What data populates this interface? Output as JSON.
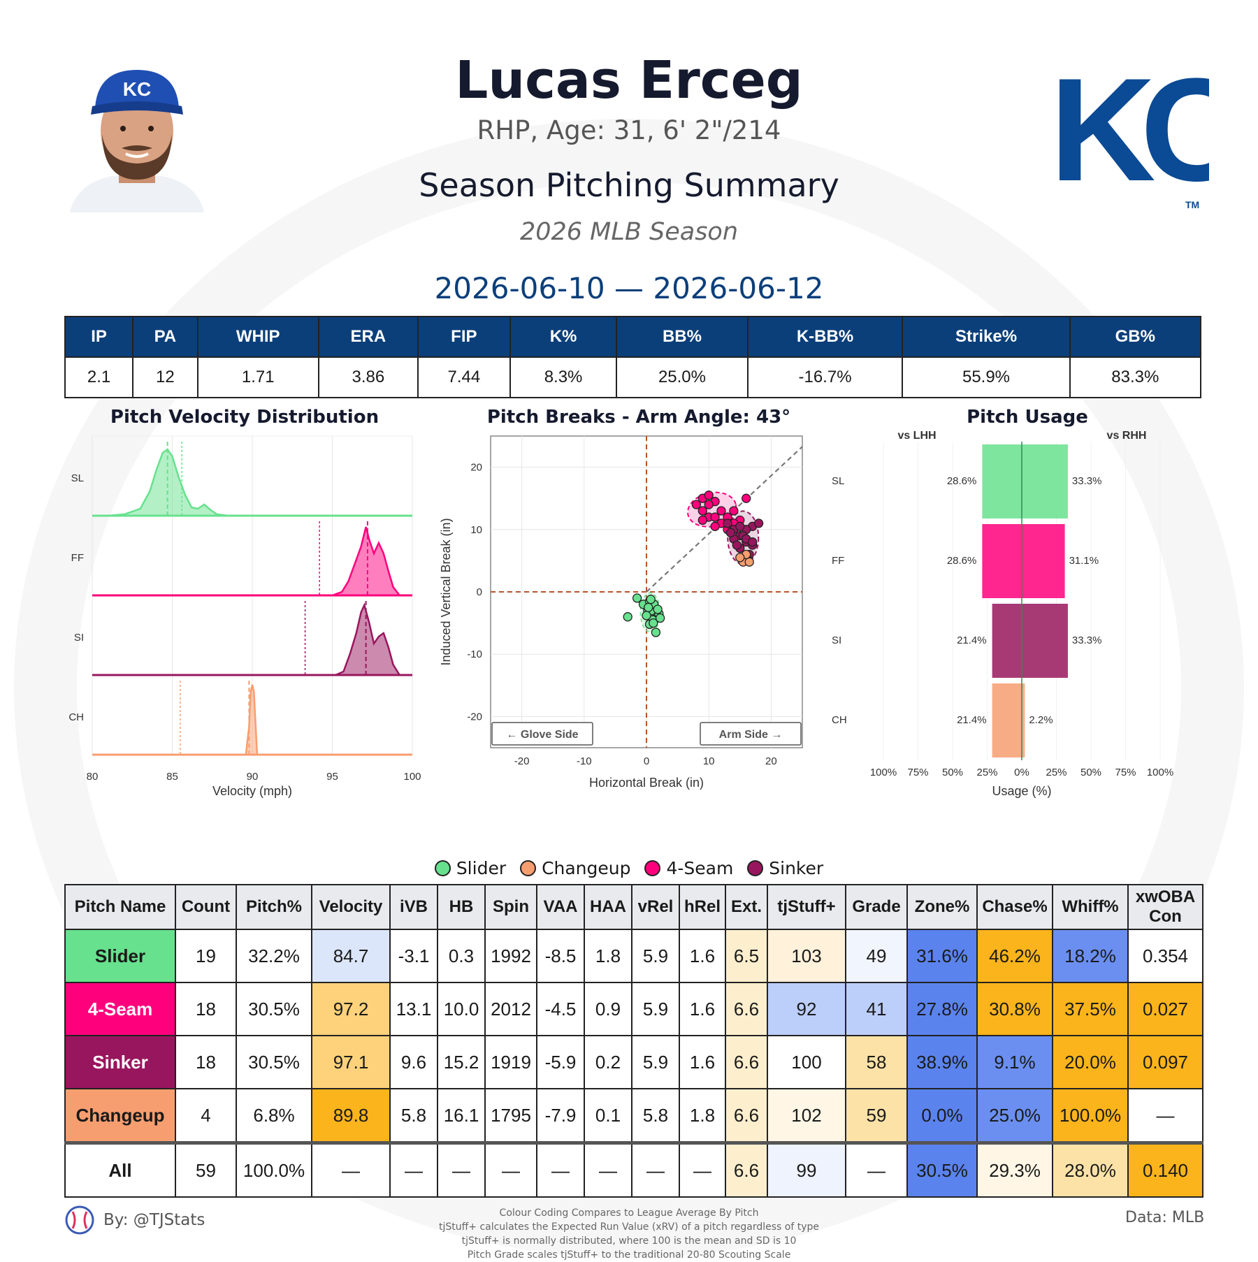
{
  "header": {
    "name": "Lucas Erceg",
    "bio": "RHP, Age: 31, 6' 2\"/214",
    "heading": "Season Pitching Summary",
    "season": "2026 MLB Season",
    "dates": "2026-06-10 — 2026-06-12",
    "logo_text": "KC",
    "logo_tm": "TM"
  },
  "stats": {
    "headers": [
      "IP",
      "PA",
      "WHIP",
      "ERA",
      "FIP",
      "K%",
      "BB%",
      "K-BB%",
      "Strike%",
      "GB%"
    ],
    "values": [
      "2.1",
      "12",
      "1.71",
      "3.86",
      "7.44",
      "8.3%",
      "25.0%",
      "-16.7%",
      "55.9%",
      "83.3%"
    ]
  },
  "colors": {
    "SL": "#67e18d",
    "FF": "#ff007d",
    "SI": "#98165d",
    "CH": "#f79e70",
    "navy": "#0b3f7a"
  },
  "chart_data": [
    {
      "type": "area",
      "title": "Pitch Velocity Distribution",
      "xlabel": "Velocity (mph)",
      "xlim": [
        80,
        100
      ],
      "xticks": [
        "80",
        "85",
        "90",
        "95",
        "100"
      ],
      "series": [
        {
          "name": "SL",
          "density_x": [
            81,
            82,
            83,
            83.6,
            84,
            84.4,
            84.7,
            85,
            85.4,
            85.8,
            86.2,
            86.6,
            87,
            87.4,
            87.8,
            88.5,
            100
          ],
          "density_y": [
            0,
            0.02,
            0.1,
            0.35,
            0.65,
            0.9,
            0.95,
            0.85,
            0.55,
            0.3,
            0.12,
            0.1,
            0.16,
            0.08,
            0.02,
            0,
            0
          ],
          "mean": 84.7,
          "league_mean": 85.6
        },
        {
          "name": "FF",
          "density_x": [
            80,
            95,
            95.6,
            96,
            96.4,
            96.8,
            97.1,
            97.3,
            97.6,
            97.9,
            98.2,
            98.5,
            98.8,
            99.2,
            100
          ],
          "density_y": [
            0,
            0,
            0.05,
            0.2,
            0.45,
            0.7,
            0.98,
            0.8,
            0.6,
            0.75,
            0.6,
            0.35,
            0.12,
            0,
            0
          ],
          "mean": 97.2,
          "league_mean": 94.2
        },
        {
          "name": "SI",
          "density_x": [
            80,
            95.2,
            95.7,
            96.1,
            96.5,
            96.8,
            97,
            97.3,
            97.6,
            97.9,
            98.2,
            98.5,
            98.8,
            99.2,
            100
          ],
          "density_y": [
            0,
            0,
            0.05,
            0.3,
            0.6,
            0.9,
            1.0,
            0.75,
            0.45,
            0.55,
            0.6,
            0.4,
            0.15,
            0,
            0
          ],
          "mean": 97.1,
          "league_mean": 93.3
        },
        {
          "name": "CH",
          "density_x": [
            80,
            89.6,
            89.8,
            89.9,
            90,
            90.1,
            90.3,
            100
          ],
          "density_y": [
            0,
            0,
            0.4,
            0.9,
            1.0,
            0.9,
            0,
            0
          ],
          "mean": 89.8,
          "league_mean": 85.5
        }
      ]
    },
    {
      "type": "scatter",
      "title": "Pitch Breaks - Arm Angle: 43°",
      "xlabel": "Horizontal Break (in)",
      "ylabel": "Induced Vertical Break (in)",
      "xlim": [
        -25,
        25
      ],
      "ylim": [
        -25,
        25
      ],
      "xticks": [
        "-20",
        "-10",
        "0",
        "10",
        "20"
      ],
      "yticks": [
        "20",
        "10",
        "0",
        "-10",
        "-20"
      ],
      "annotations": [
        "← Glove Side",
        "Arm Side →"
      ],
      "series": [
        {
          "name": "SL",
          "points": [
            [
              -3,
              -4
            ],
            [
              -1.5,
              -1
            ],
            [
              -0.5,
              -2
            ],
            [
              0.2,
              -3
            ],
            [
              0.5,
              -1.5
            ],
            [
              1,
              -2.5
            ],
            [
              1.5,
              -3.2
            ],
            [
              1,
              -4.5
            ],
            [
              0.5,
              -5.2
            ],
            [
              1.5,
              -6.5
            ],
            [
              2,
              -3.5
            ],
            [
              0.8,
              -3
            ],
            [
              1.2,
              -2
            ],
            [
              0,
              -3.8
            ],
            [
              1.8,
              -2.8
            ],
            [
              0.3,
              -2.5
            ],
            [
              1.1,
              -5
            ],
            [
              2.2,
              -4.2
            ],
            [
              0.7,
              -1.2
            ]
          ]
        },
        {
          "name": "FF",
          "points": [
            [
              8,
              14
            ],
            [
              9,
              15
            ],
            [
              10,
              15.5
            ],
            [
              11,
              14.5
            ],
            [
              12,
              13
            ],
            [
              10,
              12
            ],
            [
              9,
              11.5
            ],
            [
              11,
              12
            ],
            [
              12,
              11
            ],
            [
              13,
              12
            ],
            [
              14,
              13
            ],
            [
              15,
              11.5
            ],
            [
              16,
              15
            ],
            [
              10,
              14
            ],
            [
              9,
              13
            ],
            [
              13,
              10
            ],
            [
              11,
              10.5
            ],
            [
              14,
              11
            ]
          ]
        },
        {
          "name": "SI",
          "points": [
            [
              13,
              11
            ],
            [
              14,
              10
            ],
            [
              15,
              9
            ],
            [
              16,
              8
            ],
            [
              17,
              10.5
            ],
            [
              18,
              11
            ],
            [
              15,
              7
            ],
            [
              14,
              8.5
            ],
            [
              16,
              10
            ],
            [
              17,
              7.5
            ],
            [
              15.5,
              9
            ],
            [
              16.5,
              6
            ],
            [
              14.5,
              7.5
            ],
            [
              16,
              8.5
            ],
            [
              13.5,
              9.5
            ],
            [
              17,
              8
            ],
            [
              15,
              10.5
            ],
            [
              16,
              5.5
            ]
          ]
        },
        {
          "name": "CH",
          "points": [
            [
              15.5,
              4.8
            ],
            [
              16.5,
              4.8
            ],
            [
              16,
              6
            ],
            [
              15,
              5.5
            ]
          ]
        }
      ]
    },
    {
      "type": "bar",
      "title": "Pitch Usage",
      "xlabel": "Usage (%)",
      "left_label": "vs LHH",
      "right_label": "vs RHH",
      "categories": [
        "SL",
        "FF",
        "SI",
        "CH"
      ],
      "xticks": [
        "100%",
        "75%",
        "50%",
        "25%",
        "0%",
        "25%",
        "50%",
        "75%",
        "100%"
      ],
      "series": [
        {
          "name": "vs LHH",
          "values": [
            28.6,
            28.6,
            21.4,
            21.4
          ],
          "labels": [
            "28.6%",
            "28.6%",
            "21.4%",
            "21.4%"
          ]
        },
        {
          "name": "vs RHH",
          "values": [
            33.3,
            31.1,
            33.3,
            2.2
          ],
          "labels": [
            "33.3%",
            "31.1%",
            "33.3%",
            "2.2%"
          ]
        }
      ]
    },
    {
      "type": "table",
      "headers": [
        "Pitch Name",
        "Count",
        "Pitch%",
        "Velocity",
        "iVB",
        "HB",
        "Spin",
        "VAA",
        "HAA",
        "vRel",
        "hRel",
        "Ext.",
        "tjStuff+",
        "Grade",
        "Zone%",
        "Chase%",
        "Whiff%",
        "xwOBA Con"
      ],
      "rows": [
        {
          "key": "SL",
          "cells": [
            "Slider",
            "19",
            "32.2%",
            "84.7",
            "-3.1",
            "0.3",
            "1992",
            "-8.5",
            "1.8",
            "5.9",
            "1.6",
            "6.5",
            "103",
            "49",
            "31.6%",
            "46.2%",
            "18.2%",
            "0.354"
          ],
          "bg": [
            "#67e18d",
            "#fff",
            "#fff",
            "#dce6fb",
            "#fff",
            "#fff",
            "#fff",
            "#fff",
            "#fff",
            "#fff",
            "#fff",
            "#fdefce",
            "#fff1da",
            "#f1f5fe",
            "#5b83ee",
            "#fbb41b",
            "#6a8ff0",
            "#fff"
          ]
        },
        {
          "key": "FF",
          "cells": [
            "4-Seam",
            "18",
            "30.5%",
            "97.2",
            "13.1",
            "10.0",
            "2012",
            "-4.5",
            "0.9",
            "5.9",
            "1.6",
            "6.6",
            "92",
            "41",
            "27.8%",
            "30.8%",
            "37.5%",
            "0.027"
          ],
          "bg": [
            "#ff007d",
            "#fff",
            "#fff",
            "#fdd27a",
            "#fff",
            "#fff",
            "#fff",
            "#fff",
            "#fff",
            "#fff",
            "#fff",
            "#fdefce",
            "#bccefa",
            "#bccefa",
            "#5b83ee",
            "#fbb41b",
            "#fbb41b",
            "#fbb41b"
          ]
        },
        {
          "key": "SI",
          "cells": [
            "Sinker",
            "18",
            "30.5%",
            "97.1",
            "9.6",
            "15.2",
            "1919",
            "-5.9",
            "0.2",
            "5.9",
            "1.6",
            "6.6",
            "100",
            "58",
            "38.9%",
            "9.1%",
            "20.0%",
            "0.097"
          ],
          "bg": [
            "#98165d",
            "#fff",
            "#fff",
            "#fdd27a",
            "#fff",
            "#fff",
            "#fff",
            "#fff",
            "#fff",
            "#fff",
            "#fff",
            "#fdefce",
            "#fff",
            "#fde2a8",
            "#5b83ee",
            "#6a8ff0",
            "#fbb41b",
            "#fbb41b"
          ]
        },
        {
          "key": "CH",
          "cells": [
            "Changeup",
            "4",
            "6.8%",
            "89.8",
            "5.8",
            "16.1",
            "1795",
            "-7.9",
            "0.1",
            "5.8",
            "1.8",
            "6.6",
            "102",
            "59",
            "0.0%",
            "25.0%",
            "100.0%",
            "—"
          ],
          "bg": [
            "#f79e70",
            "#fff",
            "#fff",
            "#fbb41b",
            "#fff",
            "#fff",
            "#fff",
            "#fff",
            "#fff",
            "#fff",
            "#fff",
            "#fdefce",
            "#fff6e6",
            "#fde2a8",
            "#5b83ee",
            "#6a8ff0",
            "#fbb41b",
            "#fff"
          ]
        },
        {
          "key": "ALL",
          "cells": [
            "All",
            "59",
            "100.0%",
            "—",
            "—",
            "—",
            "—",
            "—",
            "—",
            "—",
            "—",
            "6.6",
            "99",
            "—",
            "30.5%",
            "29.3%",
            "28.0%",
            "0.140"
          ],
          "bg": [
            "#fff",
            "#fff",
            "#fff",
            "#fff",
            "#fff",
            "#fff",
            "#fff",
            "#fff",
            "#fff",
            "#fff",
            "#fff",
            "#fdefce",
            "#eef3fe",
            "#fff",
            "#5b83ee",
            "#fff6e6",
            "#fde2a8",
            "#fbb41b"
          ]
        }
      ]
    }
  ],
  "legend": [
    {
      "label": "Slider",
      "color": "#67e18d"
    },
    {
      "label": "Changeup",
      "color": "#f79e70"
    },
    {
      "label": "4-Seam",
      "color": "#ff007d"
    },
    {
      "label": "Sinker",
      "color": "#98165d"
    }
  ],
  "footer": {
    "by": "By: @TJStats",
    "data": "Data: MLB",
    "notes": [
      "Colour Coding Compares to League Average By Pitch",
      "tjStuff+ calculates the Expected Run Value (xRV) of a pitch regardless of type",
      "tjStuff+ is normally distributed, where 100 is the mean and SD is 10",
      "Pitch Grade scales tjStuff+ to the traditional 20-80 Scouting Scale"
    ]
  }
}
